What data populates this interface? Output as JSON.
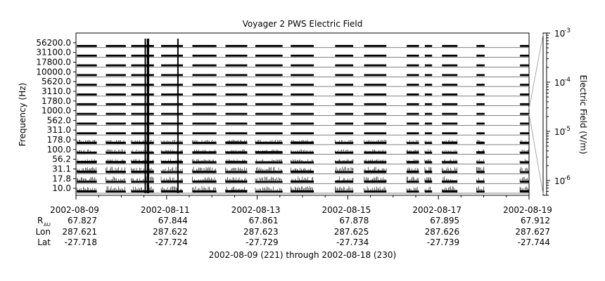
{
  "chart_data": {
    "type": "line",
    "title": "Voyager 2 PWS Electric Field",
    "ylabel": "Frequency (Hz)",
    "colorbar_label": "Electric Field (V/m)",
    "subtitle": "2002-08-09 (221) through 2002-08-18 (230)",
    "colorbar_scale": "log",
    "colorbar_range": [
      5e-07,
      0.001
    ],
    "colorbar_ticks": [
      {
        "value": 1e-06,
        "base": "10",
        "exp": "-6"
      },
      {
        "value": 1e-05,
        "base": "10",
        "exp": "-5"
      },
      {
        "value": 0.0001,
        "base": "10",
        "exp": "-4"
      },
      {
        "value": 0.001,
        "base": "10",
        "exp": "-3"
      }
    ],
    "channels": [
      "10.0",
      "17.8",
      "31.1",
      "56.2",
      "100.0",
      "178.0",
      "311.0",
      "562.0",
      "1000.0",
      "1780.0",
      "3110.0",
      "5620.0",
      "10000.0",
      "17800.0",
      "31100.0",
      "56200.0"
    ],
    "x_range": [
      0,
      10
    ],
    "x_tick_labels": [
      "2002-08-09",
      "2002-08-11",
      "2002-08-13",
      "2002-08-15",
      "2002-08-17",
      "2002-08-19"
    ],
    "x_tick_values": [
      0,
      2,
      4,
      6,
      8,
      10
    ],
    "ephemeris_labels": {
      "r": "R",
      "r_sub": "AU",
      "lon": "Lon",
      "lat": "Lat"
    },
    "ephemeris": [
      {
        "r": "67.827",
        "lon": "287.621",
        "lat": "-27.718"
      },
      {
        "r": "67.844",
        "lon": "287.622",
        "lat": "-27.724"
      },
      {
        "r": "67.861",
        "lon": "287.623",
        "lat": "-27.729"
      },
      {
        "r": "67.878",
        "lon": "287.625",
        "lat": "-27.734"
      },
      {
        "r": "67.895",
        "lon": "287.626",
        "lat": "-27.739"
      },
      {
        "r": "67.912",
        "lon": "287.627",
        "lat": "-27.744"
      }
    ],
    "data_segments": [
      [
        0.02,
        0.46
      ],
      [
        0.66,
        1.1
      ],
      [
        1.22,
        1.72
      ],
      [
        1.88,
        2.36
      ],
      [
        2.57,
        3.1
      ],
      [
        3.3,
        3.78
      ],
      [
        3.96,
        4.56
      ],
      [
        4.74,
        5.25
      ],
      [
        5.72,
        6.12
      ],
      [
        6.36,
        6.85
      ],
      [
        7.3,
        7.57
      ],
      [
        7.7,
        7.86
      ],
      [
        8.08,
        8.42
      ],
      [
        8.84,
        9.02
      ],
      [
        9.8,
        10.0
      ]
    ],
    "spikes": [
      1.53,
      1.58,
      1.6,
      2.25
    ]
  }
}
